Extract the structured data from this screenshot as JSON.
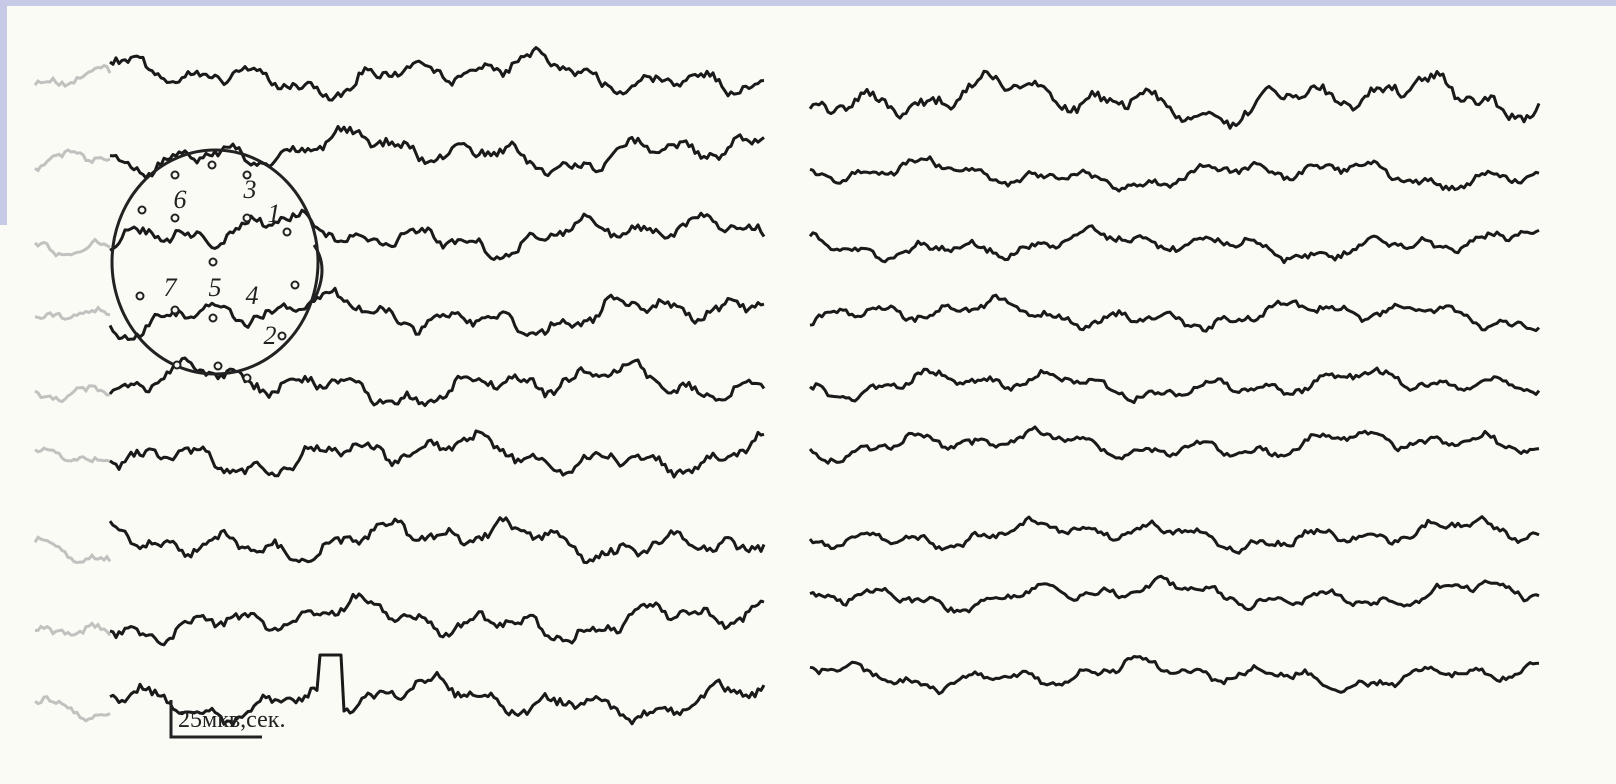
{
  "scale_label": "25мкв,сек.",
  "electrode_labels": [
    "1",
    "2",
    "3",
    "4",
    "5",
    "6",
    "7"
  ]
}
